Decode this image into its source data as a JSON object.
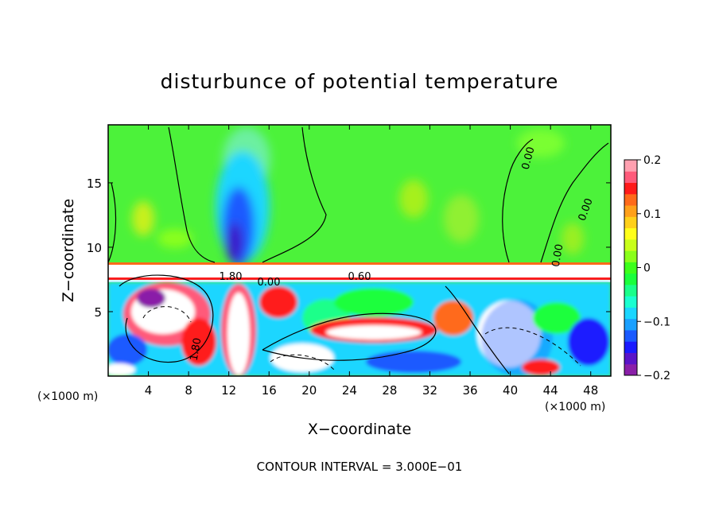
{
  "chart_data": {
    "type": "heatmap",
    "title": "disturbunce of potential temperature",
    "xlabel": "X−coordinate",
    "ylabel": "Z−coordinate",
    "x_unit": "(×1000 m)",
    "y_unit": "(×1000 m)",
    "x_ticks": [
      4,
      8,
      12,
      16,
      20,
      24,
      28,
      32,
      36,
      40,
      44,
      48
    ],
    "y_ticks": [
      5,
      10,
      15
    ],
    "xlim": [
      0,
      50
    ],
    "ylim": [
      0,
      19.5
    ],
    "colorbar": {
      "range": [
        -0.2,
        0.2
      ],
      "tick_values": [
        0.2,
        0.1,
        0,
        -0.1,
        -0.2
      ],
      "tick_labels": [
        "0.2",
        "0.1",
        "0",
        "−0.1",
        "−0.2"
      ],
      "colors": [
        "#8a1fa8",
        "#5a14c8",
        "#1a1aff",
        "#1a5aff",
        "#1aa0ff",
        "#1ad6ff",
        "#1affd0",
        "#1aff8a",
        "#1aff3c",
        "#3cff1a",
        "#8aff1a",
        "#c8ff1a",
        "#ffff1a",
        "#ffd01a",
        "#ffa01a",
        "#ff6a1a",
        "#ff1a1a",
        "#ff5a7a",
        "#ffa0b0"
      ]
    },
    "contour_labels": [
      "0.00",
      "0.00",
      "0.00",
      "0.60",
      "1.80",
      "0.00",
      "1.80"
    ],
    "annotation": "CONTOUR INTERVAL = 3.000E−01"
  }
}
